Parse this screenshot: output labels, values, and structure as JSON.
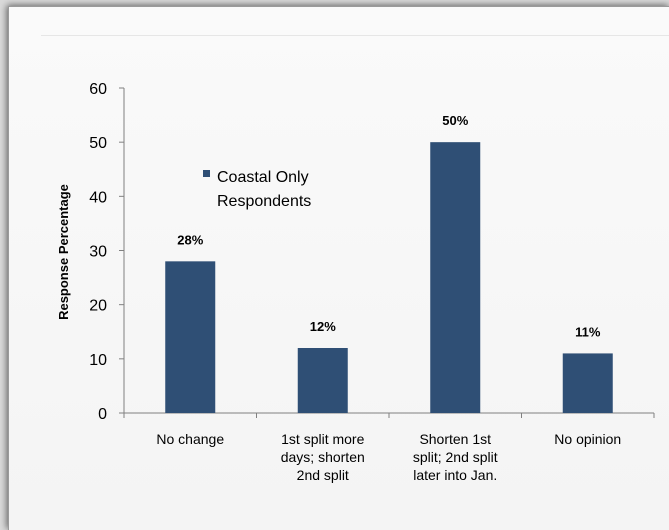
{
  "chart_data": {
    "type": "bar",
    "categories": [
      [
        "No change"
      ],
      [
        "1st split more",
        "days; shorten",
        "2nd split"
      ],
      [
        "Shorten 1st",
        "split; 2nd split",
        "later into Jan."
      ],
      [
        "No opinion"
      ]
    ],
    "series": [
      {
        "name": "Coastal Only Respondents",
        "values": [
          28,
          12,
          50,
          11
        ],
        "labels": [
          "28%",
          "12%",
          "50%",
          "11%"
        ]
      }
    ],
    "title": "",
    "xlabel": "",
    "ylabel": "Response Percentage",
    "ylim": [
      0,
      60
    ],
    "yticks": [
      0,
      10,
      20,
      30,
      40,
      50,
      60
    ],
    "grid": false,
    "legend_position": "top-left",
    "colors": {
      "bar": "#2f4f75"
    }
  }
}
